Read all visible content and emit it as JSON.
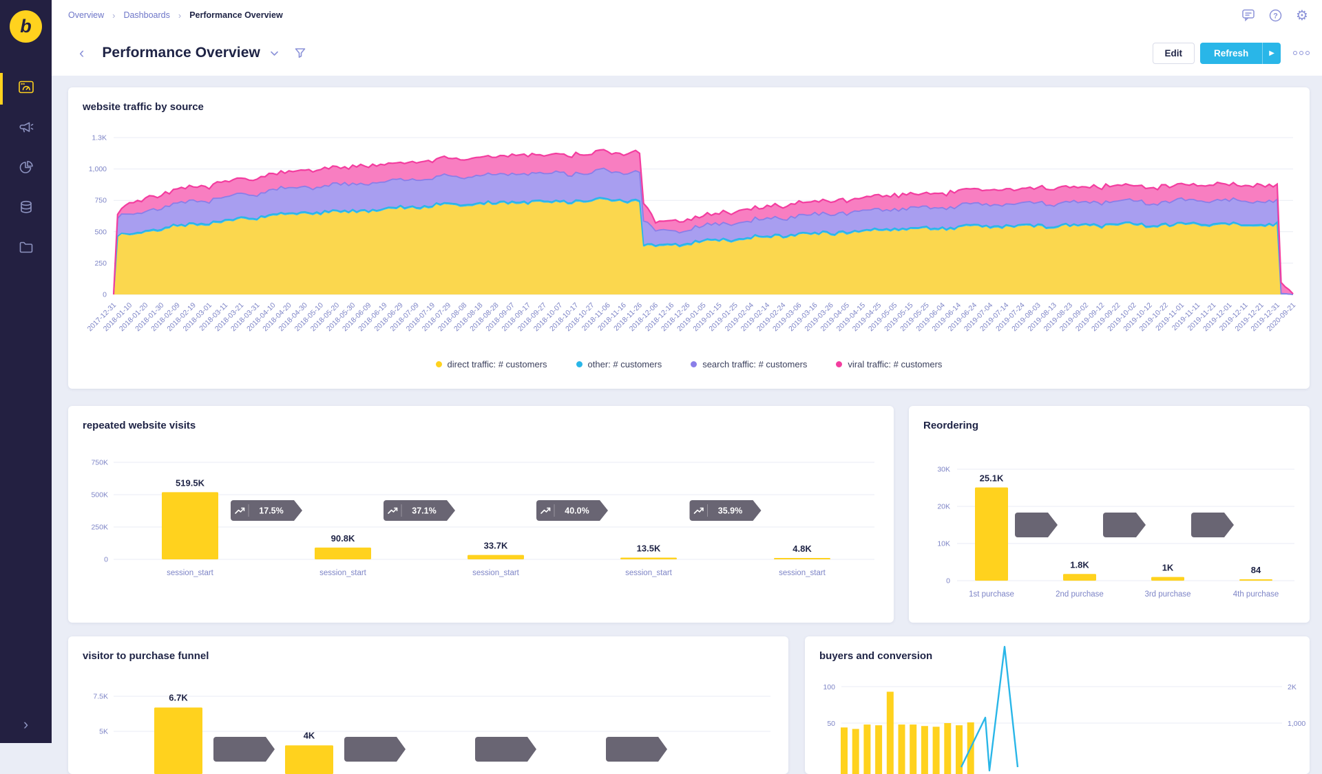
{
  "sidebar": {
    "logo_letter": "b",
    "items": [
      {
        "id": "dashboards",
        "icon": "dashboard-icon",
        "active": true
      },
      {
        "id": "campaigns",
        "icon": "megaphone-icon",
        "active": false
      },
      {
        "id": "reports",
        "icon": "pie-chart-icon",
        "active": false
      },
      {
        "id": "data",
        "icon": "database-icon",
        "active": false
      },
      {
        "id": "files",
        "icon": "folder-icon",
        "active": false
      }
    ],
    "expand_icon": "chevron-right-icon"
  },
  "topbar": {
    "breadcrumb": [
      "Overview",
      "Dashboards",
      "Performance Overview"
    ],
    "icons": [
      "comment-icon",
      "help-icon",
      "settings-icon"
    ]
  },
  "titlebar": {
    "title": "Performance Overview",
    "edit_label": "Edit",
    "refresh_label": "Refresh"
  },
  "colors": {
    "sidebar_bg": "#232041",
    "accent_yellow": "#FFD21E",
    "accent_cyan": "#29B6E8",
    "accent_purple": "#8A7EE8",
    "accent_pink": "#F33D9F",
    "badge_dark": "#5E5968",
    "grid": "#E9EBF4",
    "muted_text": "#7D84C6",
    "page_bg": "#EAEDF6"
  },
  "chart_data": [
    {
      "id": "website_traffic",
      "type": "area",
      "stacked": true,
      "title": "website traffic by source",
      "ylim": [
        0,
        1250
      ],
      "y_ticks": [
        {
          "v": 0,
          "label": "0"
        },
        {
          "v": 250,
          "label": "250"
        },
        {
          "v": 500,
          "label": "500"
        },
        {
          "v": 750,
          "label": "750"
        },
        {
          "v": 1000,
          "label": "1,000"
        },
        {
          "v": 1250,
          "label": "1.3K"
        }
      ],
      "x": [
        "2017-12-31",
        "2018-01-10",
        "2018-01-20",
        "2018-01-30",
        "2018-02-09",
        "2018-02-19",
        "2018-03-01",
        "2018-03-11",
        "2018-03-21",
        "2018-03-31",
        "2018-04-10",
        "2018-04-20",
        "2018-04-30",
        "2018-05-10",
        "2018-05-20",
        "2018-05-30",
        "2018-06-09",
        "2018-06-19",
        "2018-06-29",
        "2018-07-09",
        "2018-07-19",
        "2018-07-29",
        "2018-08-08",
        "2018-08-18",
        "2018-08-28",
        "2018-09-07",
        "2018-09-17",
        "2018-09-27",
        "2018-10-07",
        "2018-10-17",
        "2018-10-27",
        "2018-11-06",
        "2018-11-16",
        "2018-11-26",
        "2018-12-06",
        "2018-12-16",
        "2018-12-26",
        "2019-01-05",
        "2019-01-15",
        "2019-01-25",
        "2019-02-04",
        "2019-02-14",
        "2019-02-24",
        "2019-03-06",
        "2019-03-16",
        "2019-03-26",
        "2019-04-05",
        "2019-04-15",
        "2019-04-25",
        "2019-05-05",
        "2019-05-15",
        "2019-05-25",
        "2019-06-04",
        "2019-06-14",
        "2019-06-24",
        "2019-07-04",
        "2019-07-14",
        "2019-07-24",
        "2019-08-03",
        "2019-08-13",
        "2019-08-23",
        "2019-09-02",
        "2019-09-12",
        "2019-09-22",
        "2019-10-02",
        "2019-10-12",
        "2019-10-22",
        "2019-11-01",
        "2019-11-11",
        "2019-11-21",
        "2019-12-01",
        "2019-12-11",
        "2019-12-21",
        "2019-12-31",
        "2020-09-21"
      ],
      "series": [
        {
          "name": "direct traffic: # customers",
          "color": "#FFD21E",
          "fill": "#FBD74E",
          "values": [
            0,
            470,
            500,
            520,
            535,
            545,
            560,
            575,
            590,
            605,
            620,
            630,
            640,
            645,
            650,
            655,
            665,
            675,
            685,
            695,
            700,
            705,
            710,
            715,
            720,
            725,
            728,
            730,
            733,
            735,
            738,
            740,
            740,
            738,
            380,
            390,
            400,
            415,
            425,
            435,
            445,
            455,
            465,
            470,
            478,
            485,
            492,
            498,
            504,
            510,
            515,
            519,
            523,
            526,
            529,
            532,
            534,
            536,
            538,
            540,
            541,
            542,
            543,
            544,
            545,
            546,
            547,
            548,
            549,
            550,
            550,
            551,
            551,
            552,
            0
          ]
        },
        {
          "name": "other: # customers",
          "color": "#29B6E8",
          "fill": "#3BBCEA",
          "values": [
            0,
            12,
            12,
            12,
            12,
            12,
            12,
            12,
            12,
            12,
            12,
            12,
            12,
            12,
            12,
            12,
            12,
            12,
            12,
            12,
            12,
            12,
            12,
            12,
            12,
            12,
            12,
            12,
            12,
            12,
            12,
            12,
            12,
            12,
            12,
            12,
            12,
            12,
            12,
            12,
            12,
            12,
            12,
            12,
            12,
            12,
            12,
            12,
            12,
            12,
            12,
            12,
            12,
            12,
            12,
            12,
            12,
            12,
            12,
            12,
            12,
            12,
            12,
            12,
            12,
            12,
            12,
            12,
            12,
            12,
            12,
            12,
            12,
            12,
            0
          ]
        },
        {
          "name": "search traffic: # customers",
          "color": "#8A7EE8",
          "fill": "#A89EF0",
          "values": [
            0,
            150,
            160,
            167,
            172,
            177,
            182,
            186,
            190,
            194,
            197,
            200,
            203,
            205,
            207,
            209,
            211,
            213,
            214,
            216,
            217,
            218,
            219,
            220,
            221,
            222,
            222,
            223,
            223,
            224,
            224,
            225,
            225,
            224,
            105,
            108,
            112,
            117,
            121,
            126,
            130,
            134,
            138,
            142,
            145,
            149,
            152,
            155,
            157,
            160,
            162,
            164,
            166,
            168,
            170,
            171,
            173,
            174,
            176,
            177,
            178,
            179,
            180,
            181,
            182,
            182,
            183,
            184,
            184,
            185,
            185,
            186,
            186,
            186,
            0
          ]
        },
        {
          "name": "viral traffic: # customers",
          "color": "#F33D9F",
          "fill": "#F87EC1",
          "values": [
            0,
            95,
            101,
            106,
            110,
            114,
            117,
            120,
            123,
            126,
            128,
            130,
            132,
            134,
            136,
            137,
            139,
            140,
            141,
            142,
            143,
            144,
            145,
            146,
            147,
            148,
            148,
            149,
            149,
            150,
            150,
            150,
            150,
            149,
            75,
            78,
            81,
            84,
            87,
            90,
            92,
            95,
            97,
            99,
            101,
            103,
            105,
            107,
            108,
            110,
            111,
            113,
            114,
            115,
            116,
            117,
            118,
            119,
            120,
            121,
            121,
            122,
            123,
            123,
            124,
            124,
            125,
            126,
            126,
            127,
            127,
            128,
            128,
            128,
            5
          ]
        }
      ],
      "legend_position": "bottom"
    },
    {
      "id": "repeated_visits",
      "type": "funnel-bar",
      "title": "repeated website visits",
      "bar_color": "#FFD21E",
      "ylim": [
        0,
        750000
      ],
      "y_ticks": [
        {
          "v": 0,
          "label": "0"
        },
        {
          "v": 250000,
          "label": "250K"
        },
        {
          "v": 500000,
          "label": "500K"
        },
        {
          "v": 750000,
          "label": "750K"
        }
      ],
      "categories": [
        "session_start",
        "session_start",
        "session_start",
        "session_start",
        "session_start"
      ],
      "values": [
        519500,
        90800,
        33700,
        13500,
        4800
      ],
      "value_labels": [
        "519.5K",
        "90.8K",
        "33.7K",
        "13.5K",
        "4.8K"
      ],
      "conversions": [
        "17.5%",
        "37.1%",
        "40.0%",
        "35.9%"
      ]
    },
    {
      "id": "reordering",
      "type": "funnel-bar",
      "title": "Reordering",
      "bar_color": "#FFD21E",
      "ylim": [
        0,
        30000
      ],
      "y_ticks": [
        {
          "v": 0,
          "label": "0"
        },
        {
          "v": 10000,
          "label": "10K"
        },
        {
          "v": 20000,
          "label": "20K"
        },
        {
          "v": 30000,
          "label": "30K"
        }
      ],
      "categories": [
        "1st purchase",
        "2nd purchase",
        "3rd purchase",
        "4th purchase"
      ],
      "values": [
        25100,
        1800,
        1000,
        84
      ],
      "value_labels": [
        "25.1K",
        "1.8K",
        "1K",
        "84"
      ],
      "conversions": [
        "",
        "",
        ""
      ]
    },
    {
      "id": "visitor_funnel",
      "type": "funnel-bar",
      "title": "visitor to purchase funnel",
      "bar_color": "#FFD21E",
      "y_ticks_visible": [
        {
          "v": 5000,
          "label": "5K"
        },
        {
          "v": 7500,
          "label": "7.5K"
        }
      ],
      "values": [
        6700,
        4000,
        null,
        null,
        null
      ],
      "value_labels": [
        "6.7K",
        "4K",
        "",
        "",
        ""
      ],
      "conversion_badges_visible": 4
    },
    {
      "id": "buyers_conversion",
      "type": "bar+line",
      "title": "buyers and conversion",
      "bar_color": "#FFD21E",
      "line_color": "#29B6E8",
      "y_ticks_left": [
        {
          "v": 50,
          "label": "50"
        },
        {
          "v": 100,
          "label": "100"
        }
      ],
      "y_ticks_right": [
        {
          "v": 1000,
          "label": "1,000"
        },
        {
          "v": 2000,
          "label": "2K"
        }
      ],
      "bar_values": [
        44,
        42,
        48,
        47,
        93,
        48,
        48,
        46,
        45,
        50,
        47,
        51
      ]
    }
  ]
}
